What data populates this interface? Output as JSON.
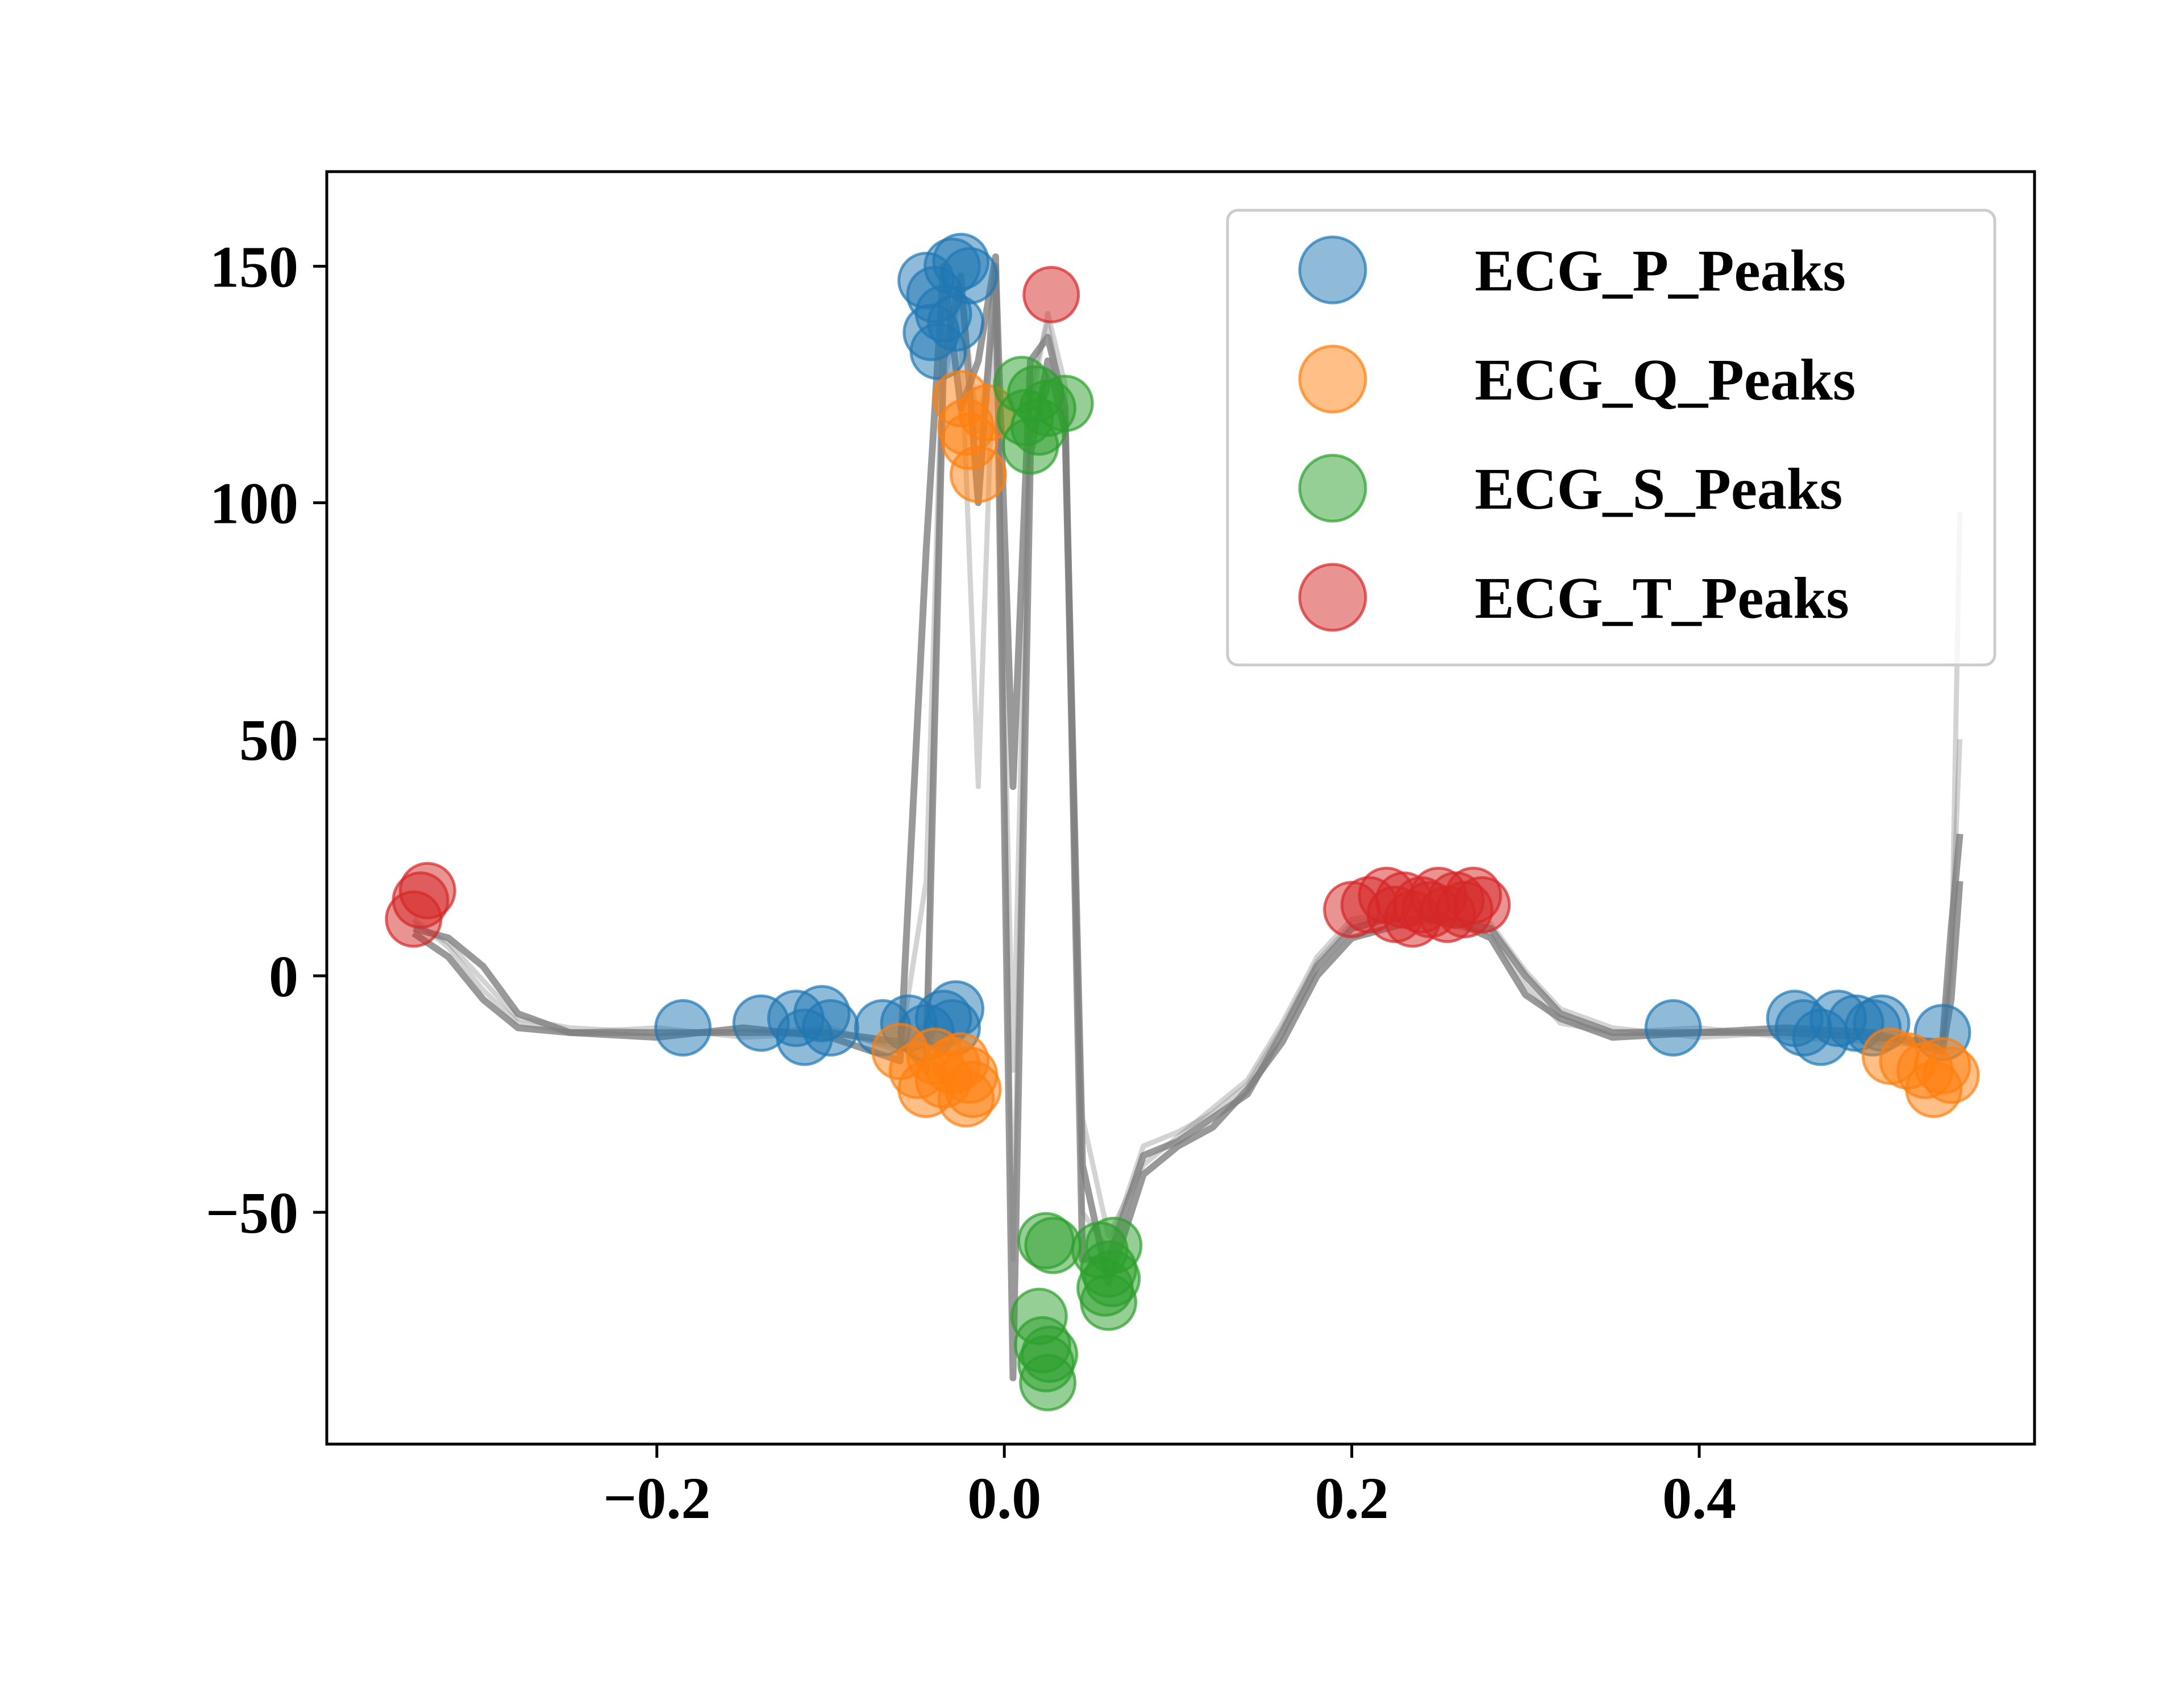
{
  "chart_data": {
    "type": "scatter",
    "title": "",
    "xlabel": "",
    "ylabel": "",
    "xlim": [
      -0.39,
      0.593
    ],
    "ylim": [
      -99,
      170
    ],
    "x_ticks": [
      -0.2,
      0.0,
      0.2,
      0.4
    ],
    "x_tick_labels": [
      "−0.2",
      "0.0",
      "0.2",
      "0.4"
    ],
    "y_ticks": [
      -50,
      0,
      50,
      100,
      150
    ],
    "y_tick_labels": [
      "−50",
      "0",
      "50",
      "100",
      "150"
    ],
    "grid": false,
    "legend_position": "top-right",
    "heartbeats": {
      "color": "#808080",
      "x": [
        -0.34,
        -0.32,
        -0.3,
        -0.28,
        -0.25,
        -0.2,
        -0.15,
        -0.1,
        -0.06,
        -0.045,
        -0.035,
        -0.025,
        -0.015,
        -0.005,
        0.005,
        0.015,
        0.025,
        0.035,
        0.045,
        0.06,
        0.08,
        0.1,
        0.12,
        0.14,
        0.16,
        0.18,
        0.2,
        0.22,
        0.25,
        0.28,
        0.3,
        0.32,
        0.35,
        0.4,
        0.45,
        0.5,
        0.54,
        0.545,
        0.55
      ],
      "series": [
        {
          "values": [
            10,
            8,
            2,
            -8,
            -12,
            -12,
            -12,
            -12,
            -14,
            -20,
            130,
            148,
            100,
            150,
            40,
            130,
            135,
            120,
            -60,
            -60,
            -38,
            -35,
            -30,
            -25,
            -12,
            2,
            10,
            12,
            12,
            10,
            0,
            -8,
            -12,
            -12,
            -12,
            -13,
            -14,
            10,
            30
          ]
        },
        {
          "values": [
            12,
            6,
            -3,
            -10,
            -12,
            -11,
            -13,
            -12,
            -15,
            20,
            140,
            135,
            40,
            145,
            -60,
            120,
            140,
            125,
            -30,
            -55,
            -40,
            -34,
            -28,
            -22,
            -10,
            4,
            12,
            13,
            11,
            9,
            -2,
            -10,
            -12,
            -11,
            -13,
            -14,
            -15,
            5,
            50
          ]
        },
        {
          "values": [
            9,
            4,
            -5,
            -11,
            -12,
            -13,
            -11,
            -13,
            -18,
            90,
            150,
            120,
            130,
            152,
            -85,
            110,
            130,
            115,
            -40,
            -65,
            -42,
            -36,
            -32,
            -24,
            -14,
            0,
            8,
            10,
            13,
            8,
            -4,
            -9,
            -13,
            -12,
            -11,
            -12,
            -16,
            -5,
            20
          ]
        },
        {
          "values": [
            11,
            7,
            -1,
            -9,
            -11,
            -12,
            -12,
            -11,
            -16,
            -10,
            125,
            145,
            115,
            140,
            -20,
            125,
            138,
            118,
            -50,
            -58,
            -36,
            -33,
            -29,
            -23,
            -11,
            3,
            11,
            12,
            12,
            11,
            1,
            -7,
            -11,
            -13,
            -12,
            -13,
            -14,
            0,
            98
          ]
        }
      ]
    },
    "series": [
      {
        "name": "ECG_P_Peaks",
        "color": "#1f77b4",
        "points": [
          [
            -0.185,
            -11
          ],
          [
            -0.14,
            -10
          ],
          [
            -0.12,
            -9
          ],
          [
            -0.115,
            -13
          ],
          [
            -0.105,
            -8
          ],
          [
            -0.1,
            -11
          ],
          [
            -0.07,
            -11
          ],
          [
            -0.055,
            -10
          ],
          [
            -0.045,
            -12
          ],
          [
            -0.035,
            -9
          ],
          [
            -0.03,
            -11
          ],
          [
            -0.028,
            -7
          ],
          [
            -0.045,
            147
          ],
          [
            -0.04,
            144
          ],
          [
            -0.035,
            140
          ],
          [
            -0.03,
            150
          ],
          [
            -0.025,
            151
          ],
          [
            -0.02,
            148
          ],
          [
            -0.042,
            136
          ],
          [
            -0.038,
            132
          ],
          [
            -0.028,
            138
          ],
          [
            0.385,
            -11
          ],
          [
            0.455,
            -9
          ],
          [
            0.46,
            -11
          ],
          [
            0.47,
            -13
          ],
          [
            0.48,
            -9
          ],
          [
            0.49,
            -10
          ],
          [
            0.5,
            -11
          ],
          [
            0.505,
            -10
          ],
          [
            0.54,
            -12
          ]
        ]
      },
      {
        "name": "ECG_Q_Peaks",
        "color": "#ff7f0e",
        "points": [
          [
            -0.06,
            -16
          ],
          [
            -0.05,
            -20
          ],
          [
            -0.045,
            -24
          ],
          [
            -0.04,
            -17
          ],
          [
            -0.035,
            -22
          ],
          [
            -0.03,
            -19
          ],
          [
            -0.025,
            -18
          ],
          [
            -0.022,
            -26
          ],
          [
            -0.02,
            -21
          ],
          [
            -0.018,
            -24
          ],
          [
            -0.025,
            122
          ],
          [
            -0.022,
            116
          ],
          [
            -0.02,
            113
          ],
          [
            -0.015,
            106
          ],
          [
            -0.01,
            119
          ],
          [
            0.51,
            -17
          ],
          [
            0.52,
            -18
          ],
          [
            0.53,
            -20
          ],
          [
            0.535,
            -24
          ],
          [
            0.54,
            -19
          ],
          [
            0.545,
            -21
          ]
        ]
      },
      {
        "name": "ECG_S_Peaks",
        "color": "#2ca02c",
        "points": [
          [
            0.01,
            125
          ],
          [
            0.012,
            118
          ],
          [
            0.015,
            112
          ],
          [
            0.018,
            123
          ],
          [
            0.02,
            116
          ],
          [
            0.025,
            120
          ],
          [
            0.035,
            121
          ],
          [
            0.02,
            -72
          ],
          [
            0.022,
            -78
          ],
          [
            0.024,
            -82
          ],
          [
            0.025,
            -86
          ],
          [
            0.026,
            -80
          ],
          [
            0.024,
            -56
          ],
          [
            0.028,
            -57
          ],
          [
            0.055,
            -58
          ],
          [
            0.058,
            -66
          ],
          [
            0.06,
            -62
          ],
          [
            0.062,
            -64
          ],
          [
            0.06,
            -69
          ],
          [
            0.063,
            -57
          ]
        ]
      },
      {
        "name": "ECG_T_Peaks",
        "color": "#d62728",
        "points": [
          [
            -0.34,
            12
          ],
          [
            -0.336,
            16
          ],
          [
            -0.332,
            18
          ],
          [
            0.027,
            144
          ],
          [
            0.2,
            14
          ],
          [
            0.21,
            15
          ],
          [
            0.22,
            17
          ],
          [
            0.225,
            13
          ],
          [
            0.23,
            16
          ],
          [
            0.235,
            12
          ],
          [
            0.24,
            15
          ],
          [
            0.245,
            14
          ],
          [
            0.25,
            17
          ],
          [
            0.255,
            13
          ],
          [
            0.26,
            16
          ],
          [
            0.265,
            14
          ],
          [
            0.27,
            17
          ],
          [
            0.275,
            15
          ]
        ]
      }
    ]
  }
}
